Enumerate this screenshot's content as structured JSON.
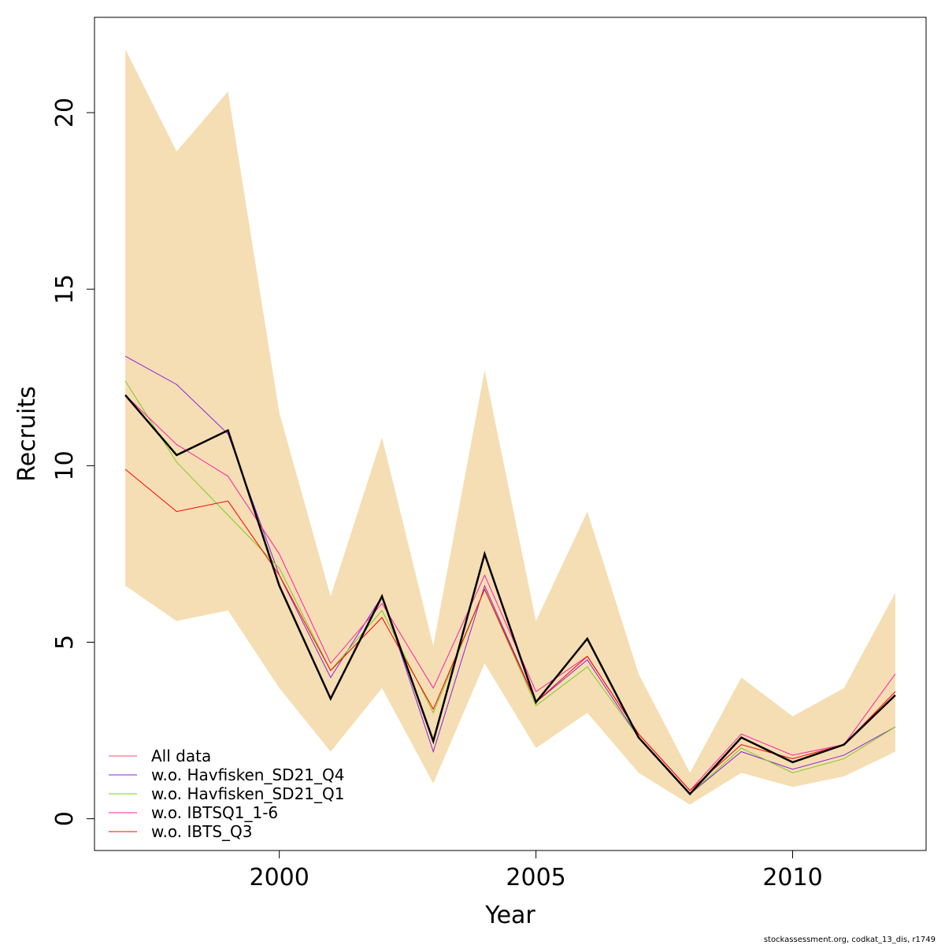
{
  "chart_data": {
    "type": "line",
    "xlabel": "Year",
    "ylabel": "Recruits",
    "xlim": [
      1996.4,
      2012.6
    ],
    "ylim": [
      -0.9,
      22.7
    ],
    "xticks": [
      2000,
      2005,
      2010
    ],
    "yticks": [
      0,
      5,
      10,
      15,
      20
    ],
    "x": [
      1997,
      1998,
      1999,
      2000,
      2001,
      2002,
      2003,
      2004,
      2005,
      2006,
      2007,
      2008,
      2009,
      2010,
      2011,
      2012
    ],
    "band": {
      "color": "#f5deb3",
      "upper": [
        21.8,
        18.9,
        20.6,
        11.5,
        6.3,
        10.8,
        4.9,
        12.7,
        5.6,
        8.7,
        4.1,
        1.3,
        4.0,
        2.9,
        3.7,
        6.4
      ],
      "lower": [
        6.6,
        5.6,
        5.9,
        3.7,
        1.9,
        3.7,
        1.0,
        4.4,
        2.0,
        3.0,
        1.3,
        0.4,
        1.3,
        0.9,
        1.2,
        1.9
      ]
    },
    "main_line": {
      "color": "#000000",
      "values": [
        12.0,
        10.3,
        11.0,
        6.6,
        3.4,
        6.3,
        2.2,
        7.5,
        3.3,
        5.1,
        2.3,
        0.7,
        2.3,
        1.6,
        2.1,
        3.5
      ]
    },
    "series": [
      {
        "name": "All data",
        "color": "#ff4d6d",
        "values": [
          12.0,
          10.3,
          11.0,
          6.6,
          3.4,
          6.3,
          2.2,
          7.5,
          3.3,
          5.1,
          2.3,
          0.7,
          2.3,
          1.6,
          2.1,
          3.5
        ]
      },
      {
        "name": "w.o. Havfisken_SD21_Q4",
        "color": "#8b1fe0",
        "values": [
          13.1,
          12.3,
          10.9,
          6.9,
          4.0,
          6.3,
          1.9,
          6.6,
          3.3,
          4.5,
          2.3,
          0.7,
          1.9,
          1.4,
          1.8,
          2.6
        ]
      },
      {
        "name": "w.o. Havfisken_SD21_Q1",
        "color": "#7ccd1f",
        "values": [
          12.4,
          10.1,
          8.6,
          7.1,
          4.2,
          5.9,
          3.0,
          6.5,
          3.2,
          4.3,
          2.3,
          0.7,
          2.0,
          1.3,
          1.7,
          2.6
        ]
      },
      {
        "name": "w.o. IBTSQ1_1-6",
        "color": "#ff1fa8",
        "values": [
          12.0,
          10.6,
          9.7,
          7.5,
          4.4,
          6.1,
          3.7,
          6.9,
          3.6,
          4.6,
          2.4,
          0.8,
          2.4,
          1.8,
          2.1,
          4.1
        ]
      },
      {
        "name": "w.o. IBTS_Q3",
        "color": "#ff0000",
        "values": [
          9.9,
          8.7,
          9.0,
          6.9,
          4.2,
          5.7,
          3.1,
          6.5,
          3.3,
          4.6,
          2.4,
          0.8,
          2.1,
          1.7,
          2.1,
          3.6
        ]
      }
    ],
    "legend": {
      "position": "bottom-left",
      "boxed": false
    },
    "grid": false
  },
  "footer": "stockassessment.org, codkat_13_dis, r1749"
}
